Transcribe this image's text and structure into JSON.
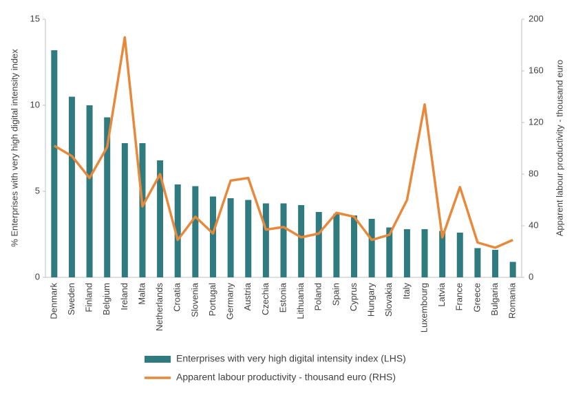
{
  "chart_data": {
    "type": "combo",
    "categories": [
      "Denmark",
      "Sweden",
      "Finland",
      "Belgium",
      "Ireland",
      "Malta",
      "Netherlands",
      "Croatia",
      "Slovenia",
      "Portugal",
      "Germany",
      "Austria",
      "Czechia",
      "Estonia",
      "Lithuania",
      "Poland",
      "Spain",
      "Cyprus",
      "Hungary",
      "Slovakia",
      "Italy",
      "Luxembourg",
      "Latvia",
      "France",
      "Greece",
      "Bulgaria",
      "Romania"
    ],
    "series": [
      {
        "name": "Enterprises with very high digital intensity index (LHS)",
        "type": "bar",
        "axis": "y",
        "color": "#2f7b80",
        "values": [
          13.2,
          10.5,
          10.0,
          9.3,
          7.8,
          7.8,
          6.8,
          5.4,
          5.3,
          4.7,
          4.6,
          4.5,
          4.3,
          4.3,
          4.2,
          3.8,
          3.7,
          3.6,
          3.4,
          2.9,
          2.8,
          2.8,
          2.7,
          2.6,
          1.7,
          1.6,
          0.9
        ]
      },
      {
        "name": "Apparent labour productivity - thousand euro (RHS)",
        "type": "line",
        "axis": "y2",
        "color": "#e8883a",
        "values": [
          102,
          94,
          77,
          101,
          186,
          55,
          80,
          29,
          47,
          34,
          75,
          77,
          37,
          39,
          31,
          34,
          50,
          47,
          29,
          33,
          60,
          134,
          31,
          70,
          27,
          23,
          29
        ]
      }
    ],
    "y_label": "% Enterprises with very high digital intensity index",
    "y2_label": "Apparent labour productivity - thousand euro",
    "ylim": [
      0,
      15
    ],
    "yticks": [
      0,
      5,
      10,
      15
    ],
    "y2lim": [
      0,
      200
    ],
    "y2ticks": [
      0,
      40,
      80,
      120,
      160,
      200
    ],
    "legend": "bottom"
  }
}
